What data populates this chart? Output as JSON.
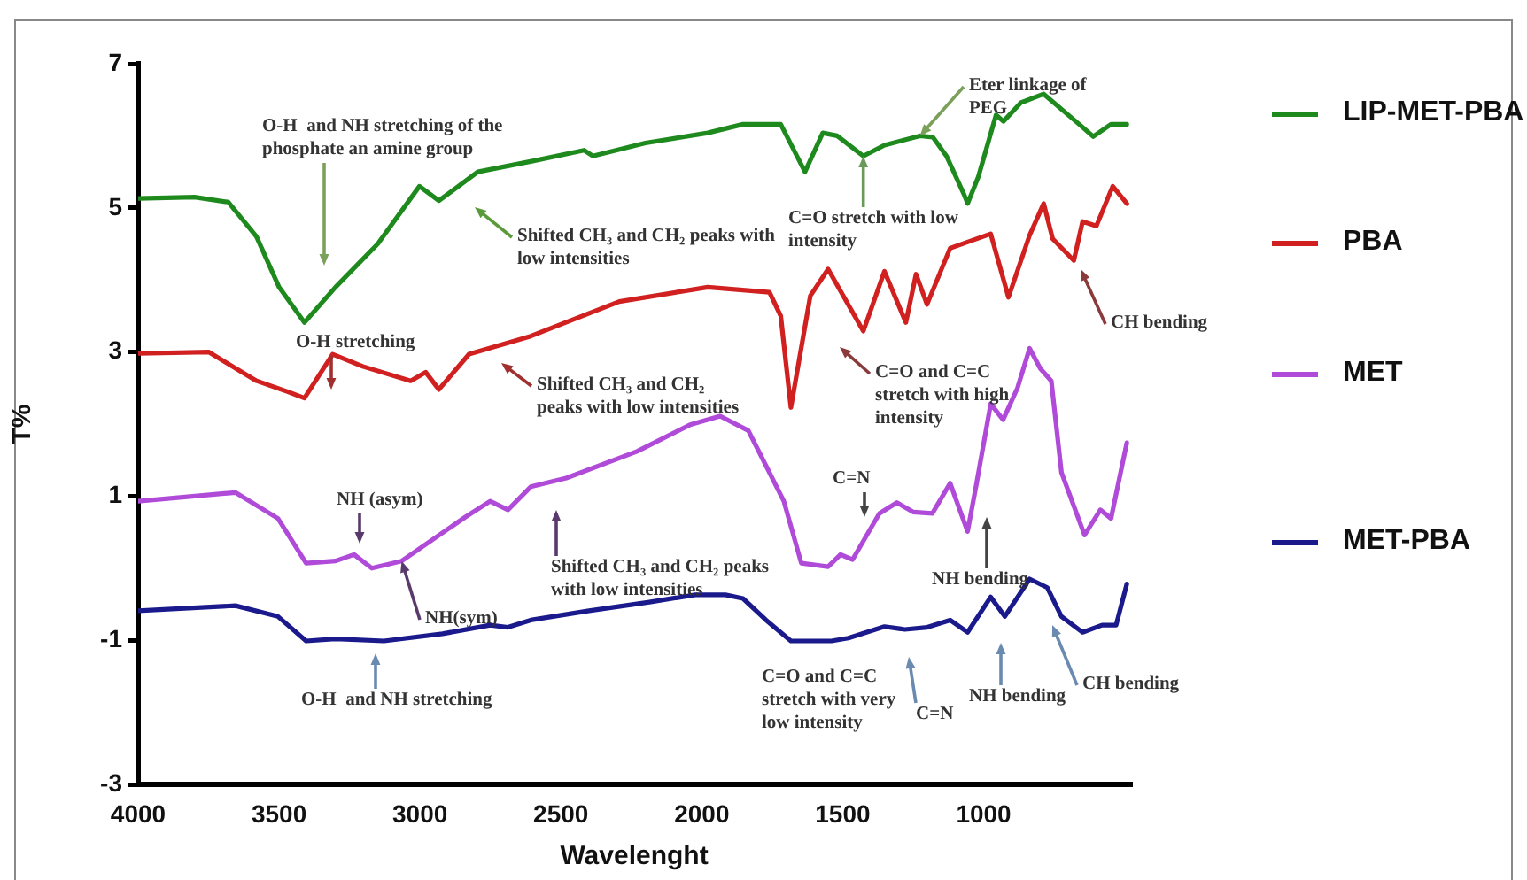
{
  "chart_data": {
    "type": "line",
    "xlabel": "Wavelenght",
    "ylabel": "T%",
    "xlim": [
      4000,
      480
    ],
    "xticks": [
      4000,
      3500,
      3000,
      2500,
      2000,
      1500,
      1000
    ],
    "ylim": [
      -3,
      7
    ],
    "yticks": [
      -3,
      -1,
      1,
      3,
      5,
      7
    ],
    "grid": false,
    "legend": "right",
    "marker": "none",
    "line_style": "solid",
    "series": [
      {
        "name": "LIP-MET-PBA",
        "color": "#1e8a1e",
        "x": [
          4000,
          3800,
          3680,
          3580,
          3500,
          3410,
          3300,
          3150,
          3002,
          2933,
          2795,
          2600,
          2418,
          2387,
          2200,
          1979,
          1854,
          1720,
          1634,
          1571,
          1520,
          1427,
          1352,
          1226,
          1180,
          1132,
          1069,
          1057,
          1019,
          956,
          930,
          868,
          787,
          661,
          611,
          548,
          492
        ],
        "values": [
          5.13,
          5.15,
          5.08,
          4.6,
          3.9,
          3.41,
          3.9,
          4.5,
          5.3,
          5.1,
          5.5,
          5.65,
          5.8,
          5.72,
          5.9,
          6.04,
          6.16,
          6.16,
          5.5,
          6.04,
          6.0,
          5.72,
          5.87,
          6.0,
          5.98,
          5.72,
          5.18,
          5.06,
          5.43,
          6.29,
          6.2,
          6.46,
          6.58,
          6.16,
          5.99,
          6.16,
          6.16
        ]
      },
      {
        "name": "PBA",
        "color": "#d02020",
        "x": [
          4000,
          3750,
          3580,
          3470,
          3410,
          3310,
          3203,
          3033,
          2980,
          2933,
          2826,
          2607,
          2293,
          1979,
          1760,
          1720,
          1684,
          1615,
          1552,
          1427,
          1352,
          1276,
          1240,
          1201,
          1119,
          975,
          912,
          837,
          787,
          755,
          680,
          649,
          600,
          542,
          492
        ],
        "values": [
          2.98,
          3.0,
          2.6,
          2.45,
          2.36,
          2.97,
          2.8,
          2.6,
          2.72,
          2.48,
          2.97,
          3.22,
          3.7,
          3.9,
          3.83,
          3.5,
          2.23,
          3.78,
          4.15,
          3.29,
          4.12,
          3.41,
          4.08,
          3.66,
          4.44,
          4.64,
          3.76,
          4.62,
          5.06,
          4.57,
          4.27,
          4.81,
          4.75,
          5.3,
          5.06
        ]
      },
      {
        "name": "MET",
        "color": "#b04ad8",
        "x": [
          4000,
          3655,
          3504,
          3404,
          3300,
          3234,
          3171,
          3065,
          2839,
          2751,
          2688,
          2607,
          2481,
          2230,
          2042,
          1935,
          1835,
          1709,
          1647,
          1552,
          1508,
          1465,
          1370,
          1308,
          1250,
          1182,
          1119,
          1057,
          1025,
          975,
          931,
          880,
          837,
          799,
          760,
          724,
          642,
          586,
          548,
          492
        ],
        "values": [
          0.93,
          1.05,
          0.69,
          0.07,
          0.1,
          0.19,
          0.0,
          0.1,
          0.71,
          0.93,
          0.81,
          1.13,
          1.25,
          1.62,
          1.99,
          2.11,
          1.91,
          0.93,
          0.07,
          0.02,
          0.19,
          0.12,
          0.76,
          0.91,
          0.78,
          0.76,
          1.18,
          0.51,
          1.18,
          2.28,
          2.06,
          2.5,
          3.05,
          2.77,
          2.6,
          1.33,
          0.46,
          0.81,
          0.69,
          1.74
        ]
      },
      {
        "name": "MET-PBA",
        "color": "#1a1a8c",
        "x": [
          4000,
          3655,
          3504,
          3404,
          3300,
          3128,
          2920,
          2751,
          2688,
          2607,
          2400,
          2186,
          2023,
          1916,
          1854,
          1772,
          1684,
          1540,
          1480,
          1352,
          1280,
          1200,
          1119,
          1057,
          975,
          925,
          837,
          774,
          724,
          649,
          580,
          530,
          492
        ],
        "values": [
          -0.59,
          -0.52,
          -0.67,
          -1.01,
          -0.98,
          -1.01,
          -0.91,
          -0.79,
          -0.82,
          -0.72,
          -0.59,
          -0.47,
          -0.37,
          -0.37,
          -0.42,
          -0.72,
          -1.01,
          -1.01,
          -0.97,
          -0.81,
          -0.85,
          -0.82,
          -0.72,
          -0.89,
          -0.4,
          -0.67,
          -0.15,
          -0.27,
          -0.67,
          -0.89,
          -0.79,
          -0.79,
          -0.22
        ]
      }
    ],
    "annotations": [
      "O-H  and NH stretching of the phosphate an amine group",
      "Shifted CH₃ and CH₂ peaks with low intensities",
      {
        "text": "C=O stretch with low intensity",
        "x": 1427,
        "y": 5.72
      },
      {
        "text": "Eter linkage of PEG",
        "x": 1226,
        "y": 6.0
      },
      "O-H stretching",
      "Shifted CH₃ and CH₂ peaks with low intensities",
      "C=O and C=C stretch with high intensity",
      "CH bending",
      "NH (asym)",
      {
        "text": "NH(sym)",
        "x": 3065,
        "y": 0.1
      },
      "Shifted CH₃ and CH₂ peaks with low intensities",
      "C=N",
      "NH bending",
      "O-H  and NH stretching",
      "C=O and C=C stretch with very low intensity",
      "C=N",
      "NH bending",
      "CH bending"
    ]
  }
}
